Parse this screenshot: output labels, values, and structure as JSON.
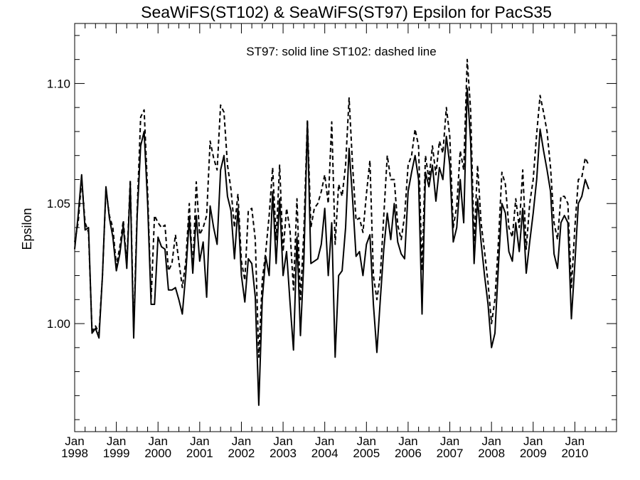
{
  "chart_data": {
    "type": "line",
    "title": "SeaWiFS(ST102) & SeaWiFS(ST97)  Epsilon for PacS35",
    "annotation": "ST97: solid line   ST102: dashed line",
    "ylabel": "Epsilon",
    "xlabel": "",
    "x_start": "1998-01",
    "x_step": "month",
    "xlim_year": [
      1998.0,
      2011.0
    ],
    "ylim": [
      0.955,
      1.125
    ],
    "yticks": [
      {
        "value": 1.0,
        "label": "1.00"
      },
      {
        "value": 1.05,
        "label": "1.05"
      },
      {
        "value": 1.1,
        "label": "1.10"
      }
    ],
    "xticks": [
      {
        "year": 1998,
        "month": "Jan",
        "label": "1998"
      },
      {
        "year": 1999,
        "month": "Jan",
        "label": "1999"
      },
      {
        "year": 2000,
        "month": "Jan",
        "label": "2000"
      },
      {
        "year": 2001,
        "month": "Jan",
        "label": "2001"
      },
      {
        "year": 2002,
        "month": "Jan",
        "label": "2002"
      },
      {
        "year": 2003,
        "month": "Jan",
        "label": "2003"
      },
      {
        "year": 2004,
        "month": "Jan",
        "label": "2004"
      },
      {
        "year": 2005,
        "month": "Jan",
        "label": "2005"
      },
      {
        "year": 2006,
        "month": "Jan",
        "label": "2006"
      },
      {
        "year": 2007,
        "month": "Jan",
        "label": "2007"
      },
      {
        "year": 2008,
        "month": "Jan",
        "label": "2008"
      },
      {
        "year": 2009,
        "month": "Jan",
        "label": "2009"
      },
      {
        "year": 2010,
        "month": "Jan",
        "label": "2010"
      }
    ],
    "grid": false,
    "series": [
      {
        "name": "ST97",
        "style": "solid",
        "color": "#000000",
        "values": [
          1.031,
          1.045,
          1.062,
          1.039,
          1.04,
          0.996,
          0.998,
          0.994,
          1.02,
          1.057,
          1.044,
          1.036,
          1.022,
          1.029,
          1.041,
          1.023,
          1.058,
          0.994,
          1.045,
          1.074,
          1.08,
          1.05,
          1.008,
          1.008,
          1.036,
          1.032,
          1.031,
          1.014,
          1.014,
          1.015,
          1.01,
          1.004,
          1.021,
          1.044,
          1.021,
          1.045,
          1.026,
          1.034,
          1.011,
          1.049,
          1.04,
          1.033,
          1.064,
          1.07,
          1.053,
          1.047,
          1.027,
          1.048,
          1.02,
          1.009,
          1.027,
          1.025,
          1.011,
          0.966,
          1.01,
          1.028,
          1.02,
          1.055,
          1.025,
          1.052,
          1.02,
          1.03,
          1.009,
          0.989,
          1.036,
          0.995,
          1.027,
          1.084,
          1.025,
          1.026,
          1.027,
          1.033,
          1.048,
          1.02,
          1.042,
          0.986,
          1.02,
          1.022,
          1.04,
          1.073,
          1.052,
          1.028,
          1.03,
          1.02,
          1.033,
          1.037,
          1.008,
          0.988,
          1.01,
          1.031,
          1.046,
          1.035,
          1.05,
          1.034,
          1.029,
          1.027,
          1.055,
          1.063,
          1.07,
          1.06,
          1.004,
          1.063,
          1.057,
          1.066,
          1.051,
          1.065,
          1.06,
          1.078,
          1.066,
          1.034,
          1.04,
          1.06,
          1.042,
          1.098,
          1.076,
          1.025,
          1.052,
          1.034,
          1.02,
          1.008,
          0.99,
          0.996,
          1.024,
          1.05,
          1.046,
          1.03,
          1.026,
          1.042,
          1.03,
          1.048,
          1.021,
          1.034,
          1.046,
          1.06,
          1.081,
          1.072,
          1.064,
          1.055,
          1.029,
          1.023,
          1.042,
          1.045,
          1.042,
          1.002,
          1.025,
          1.05,
          1.053,
          1.06,
          1.056
        ]
      },
      {
        "name": "ST102",
        "style": "dashed",
        "color": "#000000",
        "values": [
          1.034,
          1.042,
          1.06,
          1.042,
          1.038,
          0.997,
          0.999,
          0.996,
          1.02,
          1.056,
          1.045,
          1.04,
          1.024,
          1.032,
          1.043,
          1.025,
          1.06,
          0.997,
          1.047,
          1.086,
          1.089,
          1.055,
          1.01,
          1.045,
          1.042,
          1.04,
          1.041,
          1.022,
          1.025,
          1.037,
          1.026,
          1.015,
          1.026,
          1.05,
          1.022,
          1.059,
          1.037,
          1.04,
          1.045,
          1.076,
          1.069,
          1.064,
          1.091,
          1.088,
          1.066,
          1.056,
          1.04,
          1.054,
          1.026,
          1.018,
          1.047,
          1.048,
          1.035,
          0.986,
          1.018,
          1.03,
          1.045,
          1.065,
          1.035,
          1.066,
          1.03,
          1.048,
          1.039,
          1.014,
          1.052,
          1.01,
          1.039,
          1.085,
          1.04,
          1.048,
          1.05,
          1.055,
          1.062,
          1.05,
          1.084,
          1.033,
          1.058,
          1.053,
          1.066,
          1.094,
          1.066,
          1.043,
          1.044,
          1.038,
          1.054,
          1.068,
          1.02,
          1.01,
          1.02,
          1.045,
          1.07,
          1.06,
          1.06,
          1.041,
          1.035,
          1.045,
          1.066,
          1.07,
          1.081,
          1.074,
          1.022,
          1.07,
          1.06,
          1.074,
          1.062,
          1.076,
          1.071,
          1.09,
          1.078,
          1.04,
          1.049,
          1.072,
          1.064,
          1.11,
          1.089,
          1.034,
          1.066,
          1.042,
          1.03,
          1.017,
          1.0,
          1.01,
          1.034,
          1.063,
          1.058,
          1.04,
          1.036,
          1.052,
          1.04,
          1.064,
          1.031,
          1.05,
          1.06,
          1.079,
          1.095,
          1.088,
          1.08,
          1.065,
          1.042,
          1.035,
          1.053,
          1.053,
          1.05,
          1.015,
          1.04,
          1.06,
          1.061,
          1.069,
          1.066
        ]
      }
    ]
  }
}
